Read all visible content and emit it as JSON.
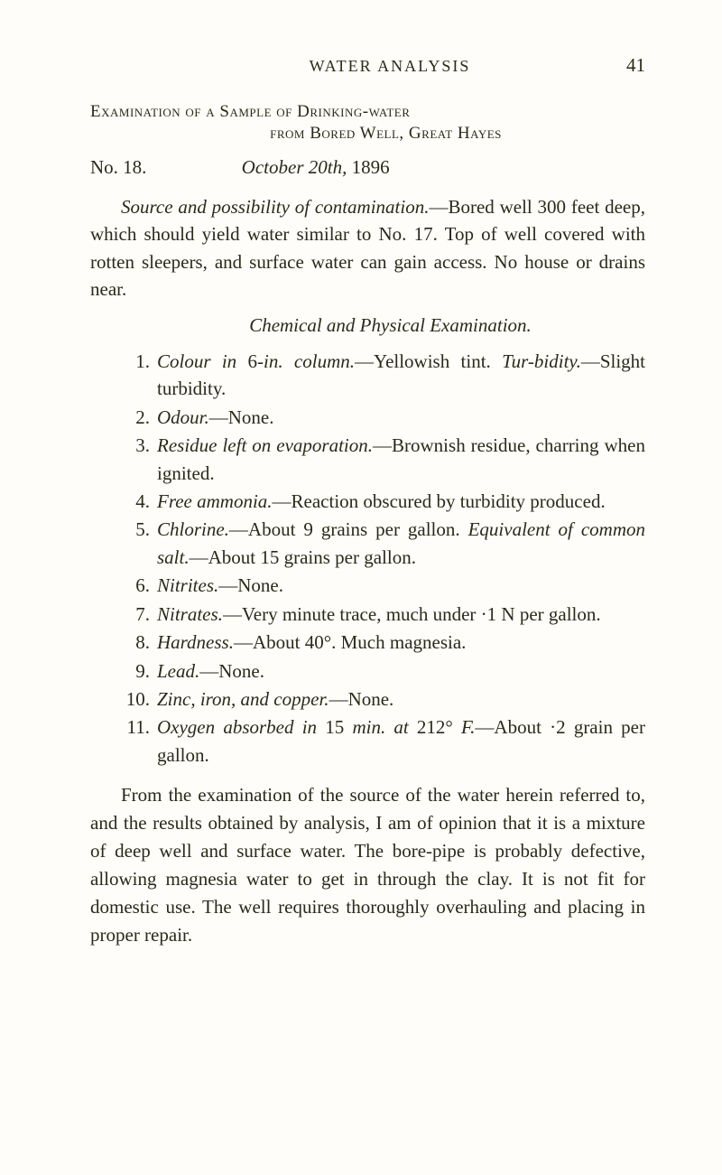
{
  "header": {
    "running_head": "WATER ANALYSIS",
    "page_number": "41"
  },
  "exam_title": {
    "line1": "Examination of a Sample of Drinking-water",
    "line2": "from Bored Well, Great Hayes"
  },
  "number_date": {
    "no_label": "No. 18.",
    "date_italic": "October 20th,",
    "date_year": " 1896"
  },
  "source_para": {
    "lead_italic": "Source and possibility of contamination.",
    "rest": "—Bored well 300 feet deep, which should yield water similar to No. 17. Top of well covered with rotten sleepers, and surface water can gain access. No house or drains near."
  },
  "section_heading": "Chemical and Physical Examination.",
  "items": {
    "i1": {
      "num": "1.",
      "head": "Colour in",
      "plain1": " 6-",
      "italic2": "in. column.",
      "rest": "—Yellowish tint.    ",
      "tail_italic": "Tur-bidity.",
      "tail_plain": "—Slight turbidity."
    },
    "i2": {
      "num": "2.",
      "head": "Odour.",
      "rest": "—None."
    },
    "i3": {
      "num": "3.",
      "head": "Residue left on evaporation.",
      "rest": "—Brownish residue, charring when ignited."
    },
    "i4": {
      "num": "4.",
      "head": "Free ammonia.",
      "rest": "—Reaction obscured by turbidity produced."
    },
    "i5": {
      "num": "5.",
      "head": "Chlorine.",
      "rest": "—About 9 grains per gallon.    ",
      "tail_italic": "Equivalent of common salt.",
      "tail_plain": "—About 15 grains per gallon."
    },
    "i6": {
      "num": "6.",
      "head": "Nitrites.",
      "rest": "—None."
    },
    "i7": {
      "num": "7.",
      "head": "Nitrates.",
      "rest": "—Very minute trace, much under ·1 N per gallon."
    },
    "i8": {
      "num": "8.",
      "head": "Hardness.",
      "rest": "—About 40°.  Much magnesia."
    },
    "i9": {
      "num": "9.",
      "head": "Lead.",
      "rest": "—None."
    },
    "i10": {
      "num": "10.",
      "head": "Zinc, iron, and copper.",
      "rest": "—None."
    },
    "i11": {
      "num": "11.",
      "head": "Oxygen absorbed in",
      "plain1": " 15 ",
      "italic2": "min. at",
      "plain2": " 212° ",
      "italic3": "F.",
      "rest": "—About ·2 grain per gallon."
    }
  },
  "final_para": "From the examination of the source of the water herein referred to, and the results obtained by analysis, I am of opinion that it is a mixture of deep well and surface water. The bore-pipe is probably defective, allowing magnesia water to get in through the clay. It is not fit for domestic use. The well requires thoroughly overhauling and placing in proper repair."
}
